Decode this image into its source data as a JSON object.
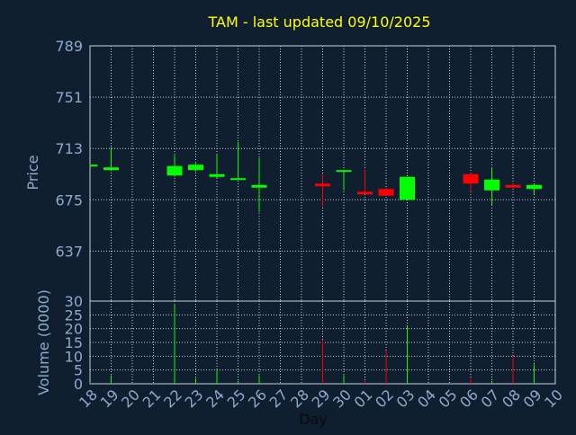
{
  "chart_data": {
    "type": "candlestick",
    "title": "TAM - last updated 09/10/2025",
    "ylabel": "Price",
    "y2label": "Volume (0000)",
    "xlabel": "Day",
    "categories": [
      "18",
      "19",
      "20",
      "21",
      "22",
      "23",
      "24",
      "25",
      "26",
      "27",
      "28",
      "29",
      "30",
      "01",
      "02",
      "03",
      "04",
      "05",
      "06",
      "07",
      "08",
      "09",
      "10"
    ],
    "open": [
      700,
      697,
      null,
      null,
      693,
      697,
      692,
      690,
      684,
      null,
      null,
      687,
      696,
      681,
      683,
      675,
      null,
      null,
      694,
      682,
      686,
      683,
      null
    ],
    "high": [
      701,
      714,
      null,
      null,
      708,
      702,
      709,
      718,
      706,
      null,
      null,
      694,
      697,
      697,
      684,
      692,
      null,
      null,
      695,
      699,
      687,
      687,
      null
    ],
    "low": [
      700,
      697,
      null,
      null,
      692,
      696,
      691,
      690,
      666,
      null,
      null,
      670,
      682,
      679,
      678,
      675,
      null,
      null,
      681,
      671,
      684,
      679,
      null
    ],
    "close": [
      701,
      699,
      null,
      null,
      700,
      701,
      694,
      691,
      686,
      null,
      null,
      685,
      697,
      679,
      678,
      692,
      null,
      null,
      687,
      690,
      684,
      686,
      null
    ],
    "volume": [
      0.5,
      3,
      null,
      null,
      29,
      2,
      5,
      1,
      3,
      null,
      null,
      16,
      3,
      1,
      12,
      21,
      null,
      null,
      2,
      1,
      10,
      7,
      null
    ],
    "up_color": "#00ff00",
    "down_color": "#ff0000",
    "ylim": [
      600,
      789
    ],
    "yticks": [
      637,
      675,
      713,
      751,
      789
    ],
    "y2lim": [
      0,
      30
    ],
    "y2ticks": [
      0,
      5,
      10,
      15,
      20,
      25,
      30
    ],
    "grid": true
  }
}
